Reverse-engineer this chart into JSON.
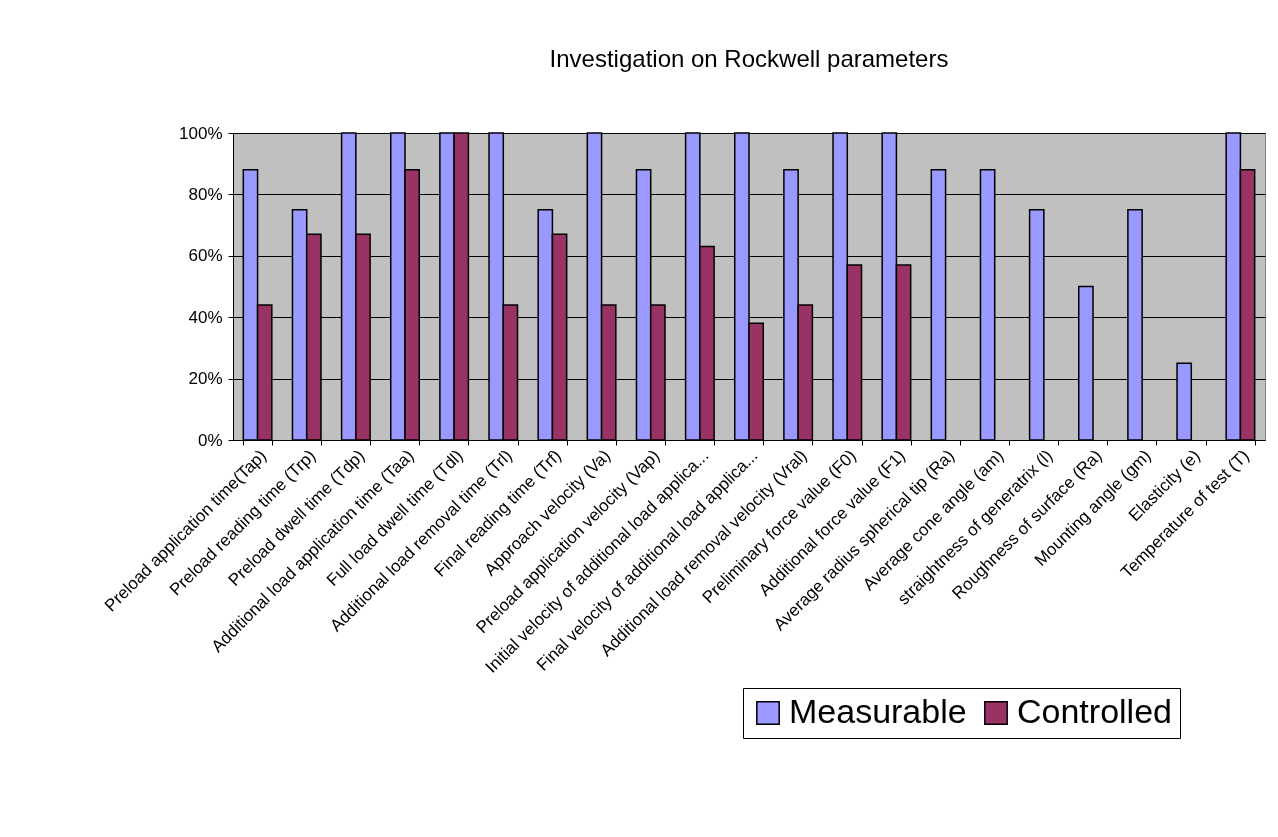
{
  "chart_data": {
    "type": "bar",
    "title": "Investigation on Rockwell parameters",
    "categories": [
      "Preload application time(Tap)",
      "Preload reading time (Trp)",
      "Preload dwell time (Tdp)",
      "Additional load application time (Taa)",
      "Full load dwell time (Tdl)",
      "Additional load removal time (Trl)",
      "Final reading time (Trf)",
      "Approach velocity (Va)",
      "Preload application velocity (Vap)",
      "Initial velocity of additional load applica...",
      "Final velocity of additional load applica...",
      "Additional load removal velocity (Vral)",
      "Preliminary force value (F0)",
      "Additional force value (F1)",
      "Average radius spherical tip (Ra)",
      "Average cone angle (am)",
      "straightness of generatrix (l)",
      "Roughness of surface (Ra)",
      "Mounting angle (gm)",
      "Elasticity (e)",
      "Temperature of test (T)"
    ],
    "series": [
      {
        "name": "Measurable",
        "color": "#9999ff",
        "values": [
          88,
          75,
          100,
          100,
          100,
          100,
          75,
          100,
          88,
          100,
          100,
          88,
          100,
          100,
          88,
          88,
          75,
          50,
          75,
          25,
          100
        ]
      },
      {
        "name": "Controlled",
        "color": "#993366",
        "values": [
          44,
          67,
          67,
          88,
          100,
          44,
          67,
          44,
          44,
          63,
          38,
          44,
          57,
          57,
          null,
          null,
          null,
          null,
          null,
          null,
          88
        ]
      }
    ],
    "ylim": [
      0,
      100
    ],
    "yticks": [
      {
        "value": 0,
        "label": "0%"
      },
      {
        "value": 20,
        "label": "20%"
      },
      {
        "value": 40,
        "label": "40%"
      },
      {
        "value": 60,
        "label": "60%"
      },
      {
        "value": 80,
        "label": "80%"
      },
      {
        "value": 100,
        "label": "100%"
      }
    ],
    "grid": "y",
    "legend": "bottom right"
  }
}
